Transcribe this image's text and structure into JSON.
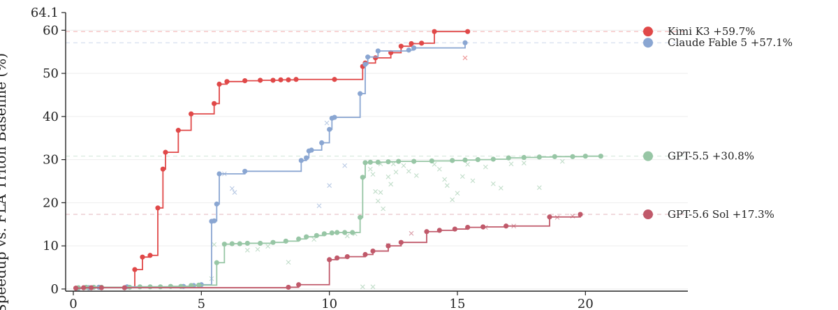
{
  "chart_data": {
    "type": "line",
    "ylabel": "Speedup vs. FLA Triton Baseline (%)",
    "xlim": [
      -0.3,
      24
    ],
    "ylim": [
      -0.5,
      64.1
    ],
    "y_top_tick": "64.1",
    "xticks": [
      0,
      5,
      10,
      15,
      20
    ],
    "yticks": [
      0,
      10,
      20,
      30,
      40,
      50,
      60
    ],
    "grid": "horizontal",
    "legend_position": "right",
    "series": [
      {
        "name": "Kimi K3 +59.7%",
        "color": "#e04848",
        "final": 59.7,
        "points": [
          [
            0.1,
            0.2
          ],
          [
            0.6,
            0.3
          ],
          [
            1.0,
            0.4
          ],
          [
            2.4,
            4.5
          ],
          [
            2.7,
            7.4
          ],
          [
            3.0,
            7.8
          ],
          [
            3.3,
            18.8
          ],
          [
            3.5,
            27.8
          ],
          [
            3.6,
            31.7
          ],
          [
            4.1,
            36.8
          ],
          [
            4.6,
            40.6
          ],
          [
            5.5,
            43.0
          ],
          [
            5.7,
            47.5
          ],
          [
            6.0,
            48.1
          ],
          [
            6.7,
            48.3
          ],
          [
            7.3,
            48.4
          ],
          [
            7.8,
            48.4
          ],
          [
            8.1,
            48.5
          ],
          [
            8.4,
            48.5
          ],
          [
            8.7,
            48.6
          ],
          [
            10.2,
            48.6
          ],
          [
            11.3,
            51.6
          ],
          [
            11.4,
            52.4
          ],
          [
            11.8,
            53.6
          ],
          [
            12.4,
            54.8
          ],
          [
            12.8,
            56.3
          ],
          [
            13.2,
            56.9
          ],
          [
            13.6,
            57.0
          ],
          [
            14.1,
            59.7
          ],
          [
            15.4,
            59.7
          ]
        ],
        "tried": [
          [
            15.3,
            53.6
          ]
        ]
      },
      {
        "name": "Claude Fable 5 +57.1%",
        "color": "#8aa6d2",
        "final": 57.1,
        "points": [
          [
            0.2,
            0.2
          ],
          [
            0.6,
            0.3
          ],
          [
            1.0,
            0.4
          ],
          [
            2.1,
            0.5
          ],
          [
            4.3,
            0.6
          ],
          [
            4.7,
            0.8
          ],
          [
            5.0,
            1.0
          ],
          [
            5.4,
            15.7
          ],
          [
            5.5,
            15.8
          ],
          [
            5.6,
            19.7
          ],
          [
            5.7,
            26.7
          ],
          [
            6.7,
            27.3
          ],
          [
            8.9,
            29.8
          ],
          [
            9.1,
            30.4
          ],
          [
            9.2,
            32.0
          ],
          [
            9.3,
            32.2
          ],
          [
            9.7,
            33.9
          ],
          [
            10.0,
            37.0
          ],
          [
            10.1,
            39.6
          ],
          [
            10.2,
            39.8
          ],
          [
            11.2,
            45.3
          ],
          [
            11.4,
            52.1
          ],
          [
            11.5,
            53.8
          ],
          [
            11.9,
            55.2
          ],
          [
            13.1,
            55.4
          ],
          [
            13.3,
            55.9
          ],
          [
            15.3,
            57.1
          ]
        ],
        "tried": [
          [
            5.9,
            26.7
          ],
          [
            6.2,
            23.3
          ],
          [
            6.3,
            22.4
          ],
          [
            9.6,
            19.3
          ],
          [
            10.0,
            24.0
          ],
          [
            9.9,
            38.5
          ],
          [
            10.6,
            28.6
          ]
        ]
      },
      {
        "name": "GPT-5.5 +30.8%",
        "color": "#97c6a5",
        "final": 30.8,
        "points": [
          [
            0.2,
            0.3
          ],
          [
            0.5,
            0.4
          ],
          [
            0.8,
            0.4
          ],
          [
            1.1,
            0.4
          ],
          [
            2.2,
            0.4
          ],
          [
            2.6,
            0.5
          ],
          [
            3.0,
            0.5
          ],
          [
            3.4,
            0.5
          ],
          [
            3.8,
            0.6
          ],
          [
            4.2,
            0.6
          ],
          [
            4.6,
            0.8
          ],
          [
            4.9,
            0.9
          ],
          [
            5.6,
            6.1
          ],
          [
            5.9,
            10.4
          ],
          [
            6.2,
            10.5
          ],
          [
            6.5,
            10.5
          ],
          [
            6.8,
            10.6
          ],
          [
            7.3,
            10.6
          ],
          [
            7.8,
            10.8
          ],
          [
            8.3,
            11.1
          ],
          [
            8.8,
            11.6
          ],
          [
            9.1,
            12.1
          ],
          [
            9.5,
            12.4
          ],
          [
            9.8,
            12.8
          ],
          [
            10.1,
            13.0
          ],
          [
            10.3,
            13.1
          ],
          [
            10.6,
            13.1
          ],
          [
            10.9,
            13.1
          ],
          [
            11.2,
            16.6
          ],
          [
            11.3,
            25.9
          ],
          [
            11.4,
            29.3
          ],
          [
            11.6,
            29.4
          ],
          [
            11.9,
            29.4
          ],
          [
            12.3,
            29.5
          ],
          [
            12.7,
            29.6
          ],
          [
            13.3,
            29.6
          ],
          [
            14.0,
            29.7
          ],
          [
            14.8,
            29.8
          ],
          [
            15.3,
            29.9
          ],
          [
            15.8,
            30.0
          ],
          [
            16.4,
            30.1
          ],
          [
            17.0,
            30.4
          ],
          [
            17.6,
            30.5
          ],
          [
            18.2,
            30.6
          ],
          [
            18.8,
            30.7
          ],
          [
            19.5,
            30.7
          ],
          [
            20.0,
            30.8
          ],
          [
            20.6,
            30.8
          ]
        ],
        "tried": [
          [
            5.4,
            2.4
          ],
          [
            5.5,
            10.3
          ],
          [
            6.8,
            9.0
          ],
          [
            7.2,
            9.2
          ],
          [
            7.6,
            9.9
          ],
          [
            8.4,
            6.2
          ],
          [
            9.4,
            11.5
          ],
          [
            10.7,
            12.3
          ],
          [
            11.0,
            12.8
          ],
          [
            11.6,
            27.8
          ],
          [
            11.7,
            26.6
          ],
          [
            11.8,
            22.6
          ],
          [
            11.9,
            20.4
          ],
          [
            12.0,
            22.4
          ],
          [
            12.1,
            18.6
          ],
          [
            12.3,
            26.0
          ],
          [
            12.4,
            24.3
          ],
          [
            12.6,
            27.1
          ],
          [
            12.9,
            28.6
          ],
          [
            13.1,
            27.3
          ],
          [
            13.4,
            26.3
          ],
          [
            14.1,
            28.9
          ],
          [
            14.3,
            27.8
          ],
          [
            14.5,
            25.4
          ],
          [
            14.6,
            24.0
          ],
          [
            14.8,
            20.7
          ],
          [
            15.0,
            22.2
          ],
          [
            15.2,
            26.1
          ],
          [
            15.4,
            28.9
          ],
          [
            15.6,
            25.1
          ],
          [
            16.1,
            28.3
          ],
          [
            16.4,
            24.4
          ],
          [
            16.7,
            23.4
          ],
          [
            17.1,
            29.0
          ],
          [
            17.6,
            29.2
          ],
          [
            18.2,
            23.5
          ],
          [
            19.1,
            29.6
          ],
          [
            12.0,
            29.0
          ],
          [
            12.5,
            29.0
          ],
          [
            11.3,
            0.5
          ],
          [
            11.7,
            0.5
          ]
        ]
      },
      {
        "name": "GPT-5.6 Sol +17.3%",
        "color": "#c0596a",
        "final": 17.3,
        "points": [
          [
            0.1,
            0.2
          ],
          [
            0.4,
            0.3
          ],
          [
            0.7,
            0.3
          ],
          [
            1.1,
            0.3
          ],
          [
            2.0,
            0.3
          ],
          [
            8.4,
            0.4
          ],
          [
            8.8,
            1.0
          ],
          [
            10.0,
            6.8
          ],
          [
            10.3,
            7.2
          ],
          [
            10.7,
            7.5
          ],
          [
            11.4,
            8.0
          ],
          [
            11.7,
            8.8
          ],
          [
            12.3,
            10.0
          ],
          [
            12.8,
            10.8
          ],
          [
            13.8,
            13.3
          ],
          [
            14.3,
            13.6
          ],
          [
            14.9,
            13.9
          ],
          [
            15.4,
            14.3
          ],
          [
            16.0,
            14.4
          ],
          [
            16.9,
            14.6
          ],
          [
            18.6,
            16.7
          ],
          [
            19.8,
            17.3
          ]
        ],
        "tried": [
          [
            13.2,
            12.9
          ],
          [
            16.1,
            14.3
          ],
          [
            17.2,
            14.6
          ],
          [
            18.9,
            16.6
          ],
          [
            19.5,
            16.9
          ],
          [
            12.3,
            10.1
          ]
        ]
      }
    ]
  }
}
